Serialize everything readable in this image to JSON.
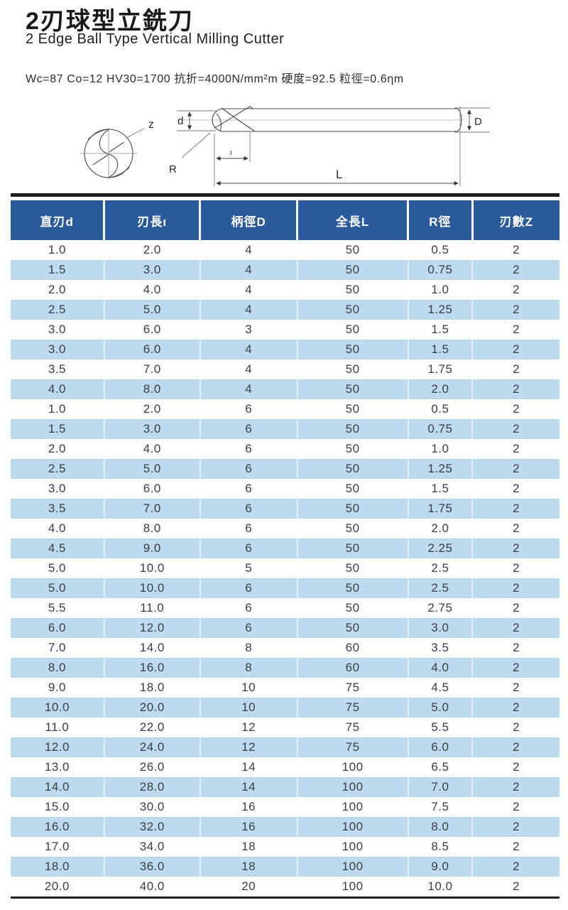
{
  "header": {
    "title_zh": "2刃球型立銑刀",
    "title_en": "2 Edge Ball Type Vertical Milling Cutter",
    "spec": "Wc=87 Co=12 HV30=1700 抗折=4000N/mm²m 硬度=92.5 粒徑=0.6ηm"
  },
  "diagram": {
    "flute_count_label": "z",
    "edge_diameter_label": "d",
    "shank_diameter_label": "D",
    "radius_label": "R",
    "flute_length_label": "ι",
    "overall_length_label": "L"
  },
  "table": {
    "headers": [
      "直刃d",
      "刃長ι",
      "柄徑D",
      "全長L",
      "R徑",
      "刃數Z"
    ],
    "rows": [
      [
        "1.0",
        "2.0",
        "4",
        "50",
        "0.5",
        "2"
      ],
      [
        "1.5",
        "3.0",
        "4",
        "50",
        "0.75",
        "2"
      ],
      [
        "2.0",
        "4.0",
        "4",
        "50",
        "1.0",
        "2"
      ],
      [
        "2.5",
        "5.0",
        "4",
        "50",
        "1.25",
        "2"
      ],
      [
        "3.0",
        "6.0",
        "3",
        "50",
        "1.5",
        "2"
      ],
      [
        "3.0",
        "6.0",
        "4",
        "50",
        "1.5",
        "2"
      ],
      [
        "3.5",
        "7.0",
        "4",
        "50",
        "1.75",
        "2"
      ],
      [
        "4.0",
        "8.0",
        "4",
        "50",
        "2.0",
        "2"
      ],
      [
        "1.0",
        "2.0",
        "6",
        "50",
        "0.5",
        "2"
      ],
      [
        "1.5",
        "3.0",
        "6",
        "50",
        "0.75",
        "2"
      ],
      [
        "2.0",
        "4.0",
        "6",
        "50",
        "1.0",
        "2"
      ],
      [
        "2.5",
        "5.0",
        "6",
        "50",
        "1.25",
        "2"
      ],
      [
        "3.0",
        "6.0",
        "6",
        "50",
        "1.5",
        "2"
      ],
      [
        "3.5",
        "7.0",
        "6",
        "50",
        "1.75",
        "2"
      ],
      [
        "4.0",
        "8.0",
        "6",
        "50",
        "2.0",
        "2"
      ],
      [
        "4.5",
        "9.0",
        "6",
        "50",
        "2.25",
        "2"
      ],
      [
        "5.0",
        "10.0",
        "5",
        "50",
        "2.5",
        "2"
      ],
      [
        "5.0",
        "10.0",
        "6",
        "50",
        "2.5",
        "2"
      ],
      [
        "5.5",
        "11.0",
        "6",
        "50",
        "2.75",
        "2"
      ],
      [
        "6.0",
        "12.0",
        "6",
        "50",
        "3.0",
        "2"
      ],
      [
        "7.0",
        "14.0",
        "8",
        "60",
        "3.5",
        "2"
      ],
      [
        "8.0",
        "16.0",
        "8",
        "60",
        "4.0",
        "2"
      ],
      [
        "9.0",
        "18.0",
        "10",
        "75",
        "4.5",
        "2"
      ],
      [
        "10.0",
        "20.0",
        "10",
        "75",
        "5.0",
        "2"
      ],
      [
        "11.0",
        "22.0",
        "12",
        "75",
        "5.5",
        "2"
      ],
      [
        "12.0",
        "24.0",
        "12",
        "75",
        "6.0",
        "2"
      ],
      [
        "13.0",
        "26.0",
        "14",
        "100",
        "6.5",
        "2"
      ],
      [
        "14.0",
        "28.0",
        "14",
        "100",
        "7.0",
        "2"
      ],
      [
        "15.0",
        "30.0",
        "16",
        "100",
        "7.5",
        "2"
      ],
      [
        "16.0",
        "32.0",
        "16",
        "100",
        "8.0",
        "2"
      ],
      [
        "17.0",
        "34.0",
        "18",
        "100",
        "8.5",
        "2"
      ],
      [
        "18.0",
        "36.0",
        "18",
        "100",
        "9.0",
        "2"
      ],
      [
        "20.0",
        "40.0",
        "20",
        "100",
        "10.0",
        "2"
      ]
    ]
  },
  "colors": {
    "header_bg": "#2b5a9c",
    "stripe_bg": "#bcdaf0",
    "top_bar": "#1c1c1c"
  }
}
